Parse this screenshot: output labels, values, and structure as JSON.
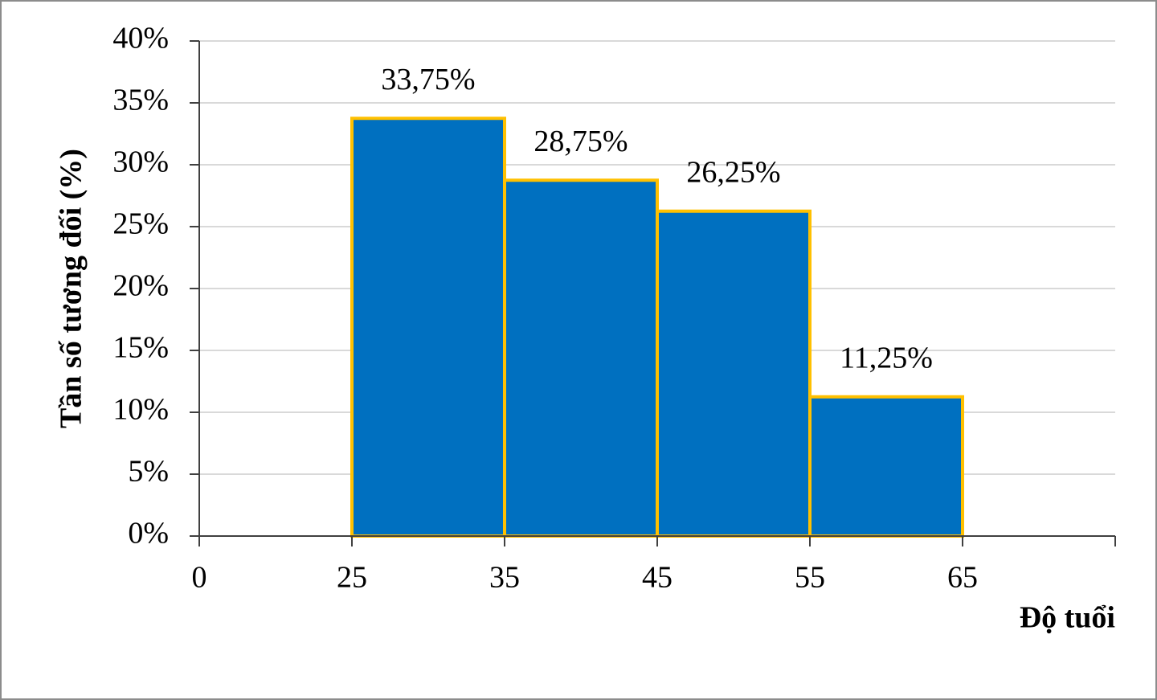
{
  "chart_data": {
    "type": "histogram",
    "x_label": "Độ tuổi",
    "y_label": "Tần số tương đối (%)",
    "bins": [
      25,
      35,
      45,
      55,
      65
    ],
    "values": [
      33.75,
      28.75,
      26.25,
      11.25
    ],
    "value_labels": [
      "33,75%",
      "28,75%",
      "26,25%",
      "11,25%"
    ],
    "color": "#0070c0",
    "edge_color": "#ffc000",
    "xticks": [
      0,
      25,
      35,
      45,
      55,
      65
    ],
    "ylim": [
      0,
      40
    ],
    "yticks": [
      {
        "value": 0,
        "label": "0%"
      },
      {
        "value": 5,
        "label": "5%"
      },
      {
        "value": 10,
        "label": "10%"
      },
      {
        "value": 15,
        "label": "15%"
      },
      {
        "value": 20,
        "label": "20%"
      },
      {
        "value": 25,
        "label": "25%"
      },
      {
        "value": 30,
        "label": "30%"
      },
      {
        "value": 35,
        "label": "35%"
      },
      {
        "value": 40,
        "label": "40%"
      }
    ],
    "grid": true
  }
}
